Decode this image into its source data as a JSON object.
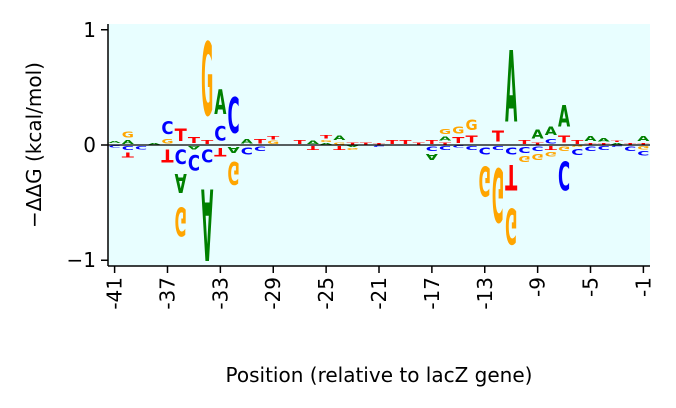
{
  "chart_data": {
    "type": "sequence-logo",
    "xlabel": "Position (relative to lacZ gene)",
    "ylabel": "−ΔΔG (kcal/mol)",
    "xlim": [
      -41.5,
      -0.5
    ],
    "ylim": [
      -1.05,
      1.05
    ],
    "x_ticks": [
      -41,
      -37,
      -33,
      -29,
      -25,
      -21,
      -17,
      -13,
      -9,
      -5,
      -1
    ],
    "x_tick_labels": [
      "-41",
      "-37",
      "-33",
      "-29",
      "-25",
      "-21",
      "-17",
      "-13",
      "-9",
      "-5",
      "-1"
    ],
    "y_ticks": [
      -1,
      0,
      1
    ],
    "y_tick_labels": [
      "−1",
      "0",
      "1"
    ],
    "background_color": "#e8feff",
    "baseline_color": "#000000",
    "bases": [
      "A",
      "C",
      "G",
      "T"
    ],
    "base_colors": {
      "A": "#008000",
      "C": "#0000ff",
      "G": "#ffa500",
      "T": "#ff0000"
    },
    "positions": [
      -41,
      -40,
      -39,
      -38,
      -37,
      -36,
      -35,
      -34,
      -33,
      -32,
      -31,
      -30,
      -29,
      -28,
      -27,
      -26,
      -25,
      -24,
      -23,
      -22,
      -21,
      -20,
      -19,
      -18,
      -17,
      -16,
      -15,
      -14,
      -13,
      -12,
      -11,
      -10,
      -9,
      -8,
      -7,
      -6,
      -5,
      -4,
      -3,
      -2,
      -1
    ],
    "series": [
      {
        "name": "A",
        "values": [
          0.03,
          0.05,
          0.0,
          0.02,
          0.0,
          -0.26,
          -0.04,
          -1.0,
          0.34,
          -0.08,
          0.06,
          0.0,
          0.0,
          0.0,
          0.0,
          0.04,
          0.02,
          0.06,
          -0.02,
          0.0,
          0.0,
          0.0,
          0.0,
          0.0,
          -0.08,
          0.05,
          0.0,
          0.0,
          0.0,
          0.0,
          1.0,
          0.0,
          0.13,
          0.12,
          0.3,
          0.0,
          0.07,
          0.04,
          0.02,
          0.0,
          0.07
        ]
      },
      {
        "name": "C",
        "values": [
          -0.03,
          -0.05,
          -0.04,
          0.0,
          0.18,
          -0.2,
          -0.22,
          -0.18,
          0.2,
          0.5,
          -0.1,
          -0.06,
          0.0,
          0.0,
          0.0,
          0.0,
          0.0,
          0.0,
          0.0,
          0.0,
          -0.02,
          0.0,
          0.0,
          0.0,
          -0.06,
          -0.05,
          -0.03,
          -0.05,
          -0.1,
          -0.05,
          -0.1,
          -0.08,
          -0.06,
          0.06,
          -0.4,
          -0.08,
          -0.06,
          -0.05,
          -0.02,
          -0.06,
          -0.06
        ]
      },
      {
        "name": "G",
        "values": [
          0.0,
          0.08,
          0.0,
          0.0,
          0.06,
          -0.4,
          0.0,
          1.02,
          0.0,
          -0.32,
          0.0,
          0.0,
          0.04,
          0.0,
          0.0,
          0.0,
          0.03,
          0.03,
          -0.03,
          0.0,
          0.0,
          0.0,
          0.0,
          0.0,
          0.0,
          0.07,
          0.1,
          0.14,
          -0.42,
          -0.75,
          -0.5,
          -0.08,
          -0.08,
          -0.06,
          -0.06,
          -0.02,
          0.0,
          0.0,
          0.0,
          0.0,
          -0.04
        ]
      },
      {
        "name": "T",
        "values": [
          0.01,
          -0.07,
          0.01,
          0.0,
          -0.18,
          0.17,
          0.08,
          0.05,
          -0.12,
          0.0,
          0.0,
          0.06,
          0.04,
          0.01,
          0.05,
          -0.05,
          0.04,
          -0.05,
          0.03,
          0.03,
          0.02,
          0.05,
          0.05,
          0.03,
          0.05,
          0.03,
          0.08,
          0.1,
          0.0,
          0.15,
          -0.35,
          0.05,
          0.03,
          -0.05,
          0.1,
          0.05,
          0.02,
          0.02,
          0.02,
          0.02,
          0.02
        ]
      }
    ]
  }
}
